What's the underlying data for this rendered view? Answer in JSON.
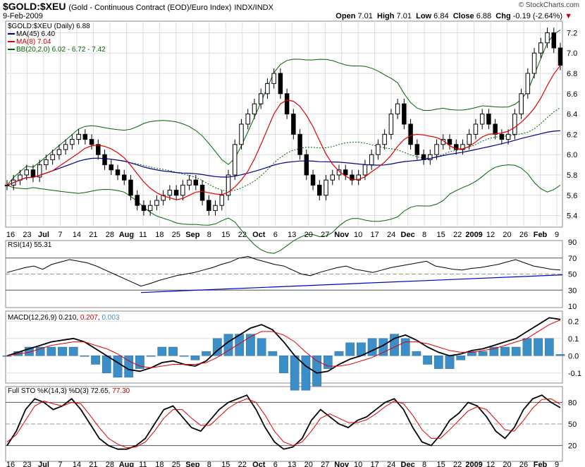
{
  "header": {
    "symbol": "$GOLD:$XEU",
    "description": "(Gold - Continuous Contract (EOD)/Euro Index)",
    "exchange": "INDX/INDX",
    "date": "9-Feb-2009",
    "watermark": "© StockCharts.com",
    "open_label": "Open",
    "open": "7.01",
    "high_label": "High",
    "high": "7.01",
    "low_label": "Low",
    "low": "6.84",
    "close_label": "Close",
    "close": "6.88",
    "chg_label": "Chg",
    "chg": "-0.19 (-2.64%)",
    "chg_arrow": "▼"
  },
  "legend": {
    "price": "$GOLD:$XEU (Daily) 6.88",
    "ma45": "MA(45) 6.40",
    "ma8": "MA(8) 7.04",
    "bb": "BB(20,2.0) 6.02 - 6.72 - 7.42",
    "rsi": "RSI(14) 55.31",
    "macd_label": "MACD(12,26,9)",
    "macd_v1": "0.210",
    "macd_v2": "0.207",
    "macd_v3": "0.003",
    "sto_label": "Full STO %K(14,3) %D(3)",
    "sto_v1": "72.65",
    "sto_v2": "77.30"
  },
  "colors": {
    "candle": "#000000",
    "ma45": "#00008b",
    "ma8": "#e00000",
    "bb": "#006400",
    "bb_mid": "#006400",
    "rsi": "#000000",
    "rsi_trend": "#0000c0",
    "macd": "#000000",
    "signal": "#e00000",
    "hist": "#3c8ec8",
    "sto_k": "#000000",
    "sto_d": "#e00000",
    "grid": "#dddddd"
  },
  "chart_data": [
    {
      "type": "candlestick",
      "title": "$GOLD:$XEU (Daily) 6.88",
      "ylim": [
        5.3,
        7.3
      ],
      "yticks": [
        "5.4",
        "5.6",
        "5.8",
        "6.0",
        "6.2",
        "6.4",
        "6.6",
        "6.8",
        "7.0",
        "7.2"
      ],
      "x_labels": [
        "16",
        "23",
        "Jul",
        "7",
        "14",
        "21",
        "28",
        "Aug",
        "11",
        "18",
        "25",
        "Sep",
        "8",
        "15",
        "22",
        "Oct",
        "6",
        "13",
        "20",
        "27",
        "Nov",
        "10",
        "17",
        "24",
        "Dec",
        "8",
        "15",
        "22",
        "2009",
        "12",
        "20",
        "26",
        "Feb",
        "9"
      ],
      "series_note": "daily close (approx)",
      "close": [
        5.7,
        5.75,
        5.8,
        5.85,
        5.78,
        5.9,
        5.95,
        6.0,
        6.05,
        6.1,
        6.15,
        6.2,
        6.15,
        6.1,
        6.0,
        5.9,
        5.85,
        5.8,
        5.75,
        5.6,
        5.5,
        5.45,
        5.5,
        5.55,
        5.6,
        5.65,
        5.6,
        5.7,
        5.75,
        5.7,
        5.55,
        5.45,
        5.5,
        5.6,
        5.8,
        6.1,
        6.3,
        6.4,
        6.5,
        6.6,
        6.7,
        6.8,
        6.6,
        6.4,
        6.2,
        6.0,
        5.8,
        5.7,
        5.6,
        5.75,
        5.8,
        5.85,
        5.8,
        5.75,
        5.8,
        5.9,
        6.0,
        6.1,
        6.2,
        6.4,
        6.5,
        6.3,
        6.1,
        6.0,
        5.95,
        6.0,
        6.1,
        6.15,
        6.1,
        6.05,
        6.1,
        6.2,
        6.3,
        6.4,
        6.3,
        6.2,
        6.15,
        6.2,
        6.4,
        6.6,
        6.8,
        7.0,
        7.1,
        7.2,
        7.05,
        6.88
      ]
    },
    {
      "type": "line",
      "title": "RSI(14) 55.31",
      "ylim": [
        10,
        90
      ],
      "yticks": [
        "10",
        "30",
        "50",
        "70",
        "90"
      ],
      "values": [
        52,
        55,
        58,
        60,
        56,
        62,
        65,
        68,
        66,
        64,
        60,
        55,
        50,
        45,
        40,
        35,
        38,
        42,
        45,
        48,
        50,
        52,
        55,
        58,
        62,
        65,
        70,
        72,
        68,
        65,
        62,
        60,
        55,
        50,
        48,
        52,
        55,
        58,
        60,
        56,
        54,
        52,
        55,
        58,
        60,
        62,
        64,
        66,
        60,
        58,
        56,
        55,
        57,
        58,
        60,
        62,
        65,
        68,
        64,
        60,
        58,
        56,
        55
      ]
    },
    {
      "type": "line",
      "title": "MACD(12,26,9)",
      "ylim": [
        -0.15,
        0.25
      ],
      "yticks": [
        "-0.1",
        "0.0",
        "0.1",
        "0.2"
      ],
      "series": [
        {
          "name": "MACD",
          "values": [
            0.0,
            0.02,
            0.04,
            0.06,
            0.08,
            0.09,
            0.1,
            0.08,
            0.04,
            0.0,
            -0.04,
            -0.08,
            -0.09,
            -0.07,
            -0.04,
            -0.03,
            -0.05,
            -0.06,
            -0.03,
            0.03,
            0.08,
            0.12,
            0.16,
            0.18,
            0.15,
            0.08,
            0.0,
            -0.06,
            -0.1,
            -0.09,
            -0.05,
            -0.02,
            0.0,
            0.03,
            0.06,
            0.1,
            0.12,
            0.09,
            0.05,
            0.02,
            0.0,
            0.01,
            0.03,
            0.04,
            0.06,
            0.08,
            0.1,
            0.14,
            0.18,
            0.22,
            0.21
          ]
        },
        {
          "name": "Signal",
          "values": [
            0.0,
            0.01,
            0.02,
            0.04,
            0.06,
            0.07,
            0.08,
            0.08,
            0.06,
            0.04,
            0.01,
            -0.03,
            -0.06,
            -0.07,
            -0.06,
            -0.05,
            -0.05,
            -0.05,
            -0.04,
            -0.01,
            0.03,
            0.07,
            0.11,
            0.14,
            0.14,
            0.12,
            0.08,
            0.02,
            -0.03,
            -0.06,
            -0.06,
            -0.05,
            -0.03,
            -0.01,
            0.02,
            0.05,
            0.08,
            0.08,
            0.07,
            0.05,
            0.03,
            0.02,
            0.02,
            0.03,
            0.04,
            0.06,
            0.08,
            0.1,
            0.14,
            0.18,
            0.207
          ]
        }
      ]
    },
    {
      "type": "line",
      "title": "Full STO %K(14,3) %D(3)",
      "ylim": [
        0,
        100
      ],
      "yticks": [
        "20",
        "50",
        "80"
      ],
      "series": [
        {
          "name": "%K",
          "values": [
            20,
            40,
            70,
            85,
            80,
            70,
            75,
            85,
            70,
            50,
            30,
            20,
            15,
            15,
            20,
            30,
            50,
            70,
            75,
            60,
            45,
            40,
            55,
            70,
            80,
            85,
            90,
            70,
            45,
            25,
            15,
            18,
            30,
            55,
            70,
            60,
            50,
            45,
            55,
            60,
            70,
            80,
            85,
            70,
            45,
            25,
            20,
            35,
            55,
            65,
            80,
            75,
            60,
            40,
            30,
            45,
            70,
            85,
            90,
            80,
            72.65
          ]
        },
        {
          "name": "%D",
          "values": [
            25,
            35,
            55,
            75,
            82,
            78,
            75,
            80,
            78,
            62,
            45,
            30,
            22,
            17,
            18,
            25,
            40,
            58,
            70,
            70,
            58,
            48,
            48,
            60,
            72,
            80,
            85,
            80,
            62,
            40,
            25,
            20,
            25,
            40,
            58,
            64,
            58,
            52,
            52,
            56,
            64,
            74,
            82,
            78,
            62,
            42,
            30,
            30,
            42,
            55,
            68,
            74,
            70,
            56,
            42,
            40,
            55,
            72,
            84,
            85,
            77.3
          ]
        }
      ]
    }
  ]
}
